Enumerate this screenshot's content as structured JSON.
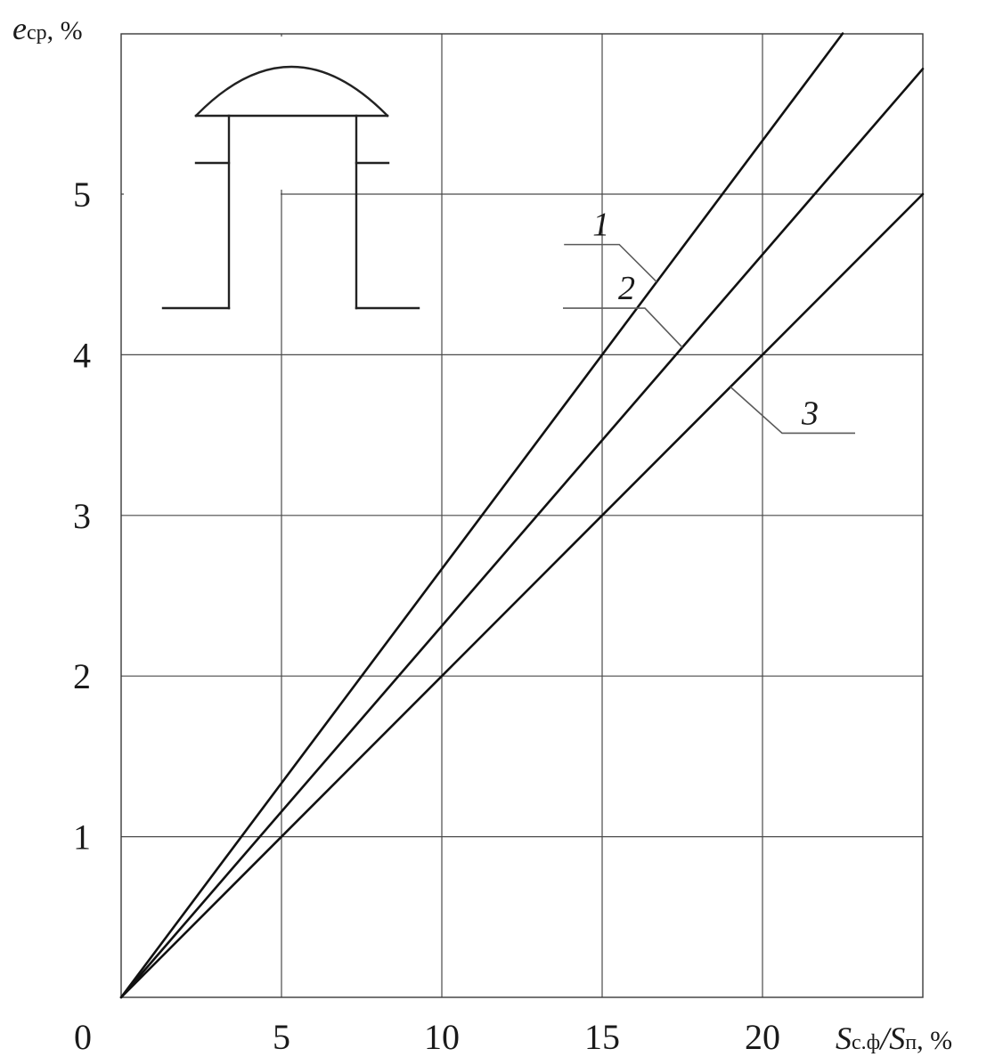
{
  "chart_data": {
    "type": "line",
    "ylabel": {
      "symbol": "e",
      "subscript": "ср",
      "unit": ", %"
    },
    "xlabel": {
      "s1": "S",
      "sub1": "с.ф",
      "slash": "/",
      "s2": "S",
      "sub2": "п",
      "unit": ", %"
    },
    "xlim": [
      0,
      25
    ],
    "ylim": [
      0,
      6
    ],
    "x_ticks": [
      0,
      5,
      10,
      15,
      20
    ],
    "x_tick_labels": [
      "0",
      "5",
      "10",
      "15",
      "20"
    ],
    "y_ticks": [
      1,
      2,
      3,
      4,
      5
    ],
    "y_tick_labels": [
      "1",
      "2",
      "3",
      "4",
      "5"
    ],
    "grid": true,
    "series": [
      {
        "name": "1",
        "x": [
          0,
          22.5
        ],
        "y": [
          0,
          6.0
        ]
      },
      {
        "name": "2",
        "x": [
          0,
          25
        ],
        "y": [
          0,
          5.78
        ]
      },
      {
        "name": "3",
        "x": [
          0,
          25
        ],
        "y": [
          0,
          5.0
        ]
      }
    ],
    "curve_labels": [
      {
        "text": "1",
        "series": 0,
        "pos": "upper-left"
      },
      {
        "text": "2",
        "series": 1,
        "pos": "upper-left"
      },
      {
        "text": "3",
        "series": 2,
        "pos": "lower-right"
      }
    ],
    "inset": "deflector-cap-schematic"
  }
}
